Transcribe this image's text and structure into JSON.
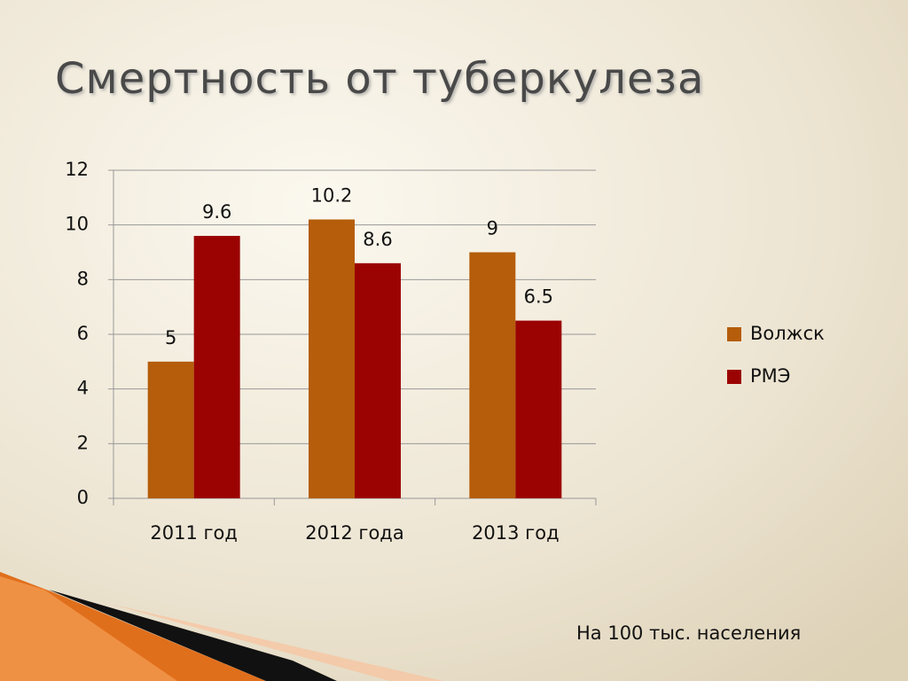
{
  "chart_data": {
    "type": "bar",
    "title": "Смертность от туберкулеза",
    "categories": [
      "2011 год",
      "2012 года",
      "2013 год"
    ],
    "series": [
      {
        "name": "Волжск",
        "color": "#b55d0a",
        "values": [
          5,
          10.2,
          9
        ]
      },
      {
        "name": "РМЭ",
        "color": "#9b0303",
        "values": [
          9.6,
          8.6,
          6.5
        ]
      }
    ],
    "ylim": [
      0,
      12
    ],
    "yticks": [
      0,
      2,
      4,
      6,
      8,
      10,
      12
    ],
    "grid": true,
    "legend": "right",
    "annotation": "На 100 тыс. населения"
  }
}
